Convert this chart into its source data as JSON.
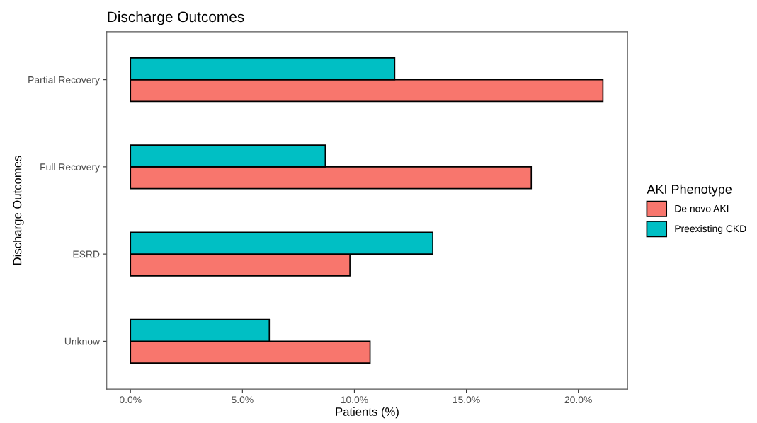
{
  "chart_data": {
    "type": "bar",
    "orientation": "horizontal",
    "title": "Discharge Outcomes",
    "xlabel": "Patients (%)",
    "ylabel": "Discharge Outcomes",
    "legend_title": "AKI Phenotype",
    "legend": "right",
    "categories": [
      "Partial Recovery",
      "Full Recovery",
      "ESRD",
      "Unknow"
    ],
    "series": [
      {
        "name": "De novo AKI",
        "color": "#f8766d",
        "values": [
          21.1,
          17.9,
          9.8,
          10.7
        ]
      },
      {
        "name": "Preexisting CKD",
        "color": "#00bfc4",
        "values": [
          11.8,
          8.7,
          13.5,
          6.2
        ]
      }
    ],
    "xlim": [
      -1.06,
      22.2
    ],
    "xticks": [
      {
        "value": 0,
        "label": "0.0%"
      },
      {
        "value": 5,
        "label": "5.0%"
      },
      {
        "value": 10,
        "label": "10.0%"
      },
      {
        "value": 15,
        "label": "15.0%"
      },
      {
        "value": 20,
        "label": "20.0%"
      }
    ],
    "grid": false
  }
}
